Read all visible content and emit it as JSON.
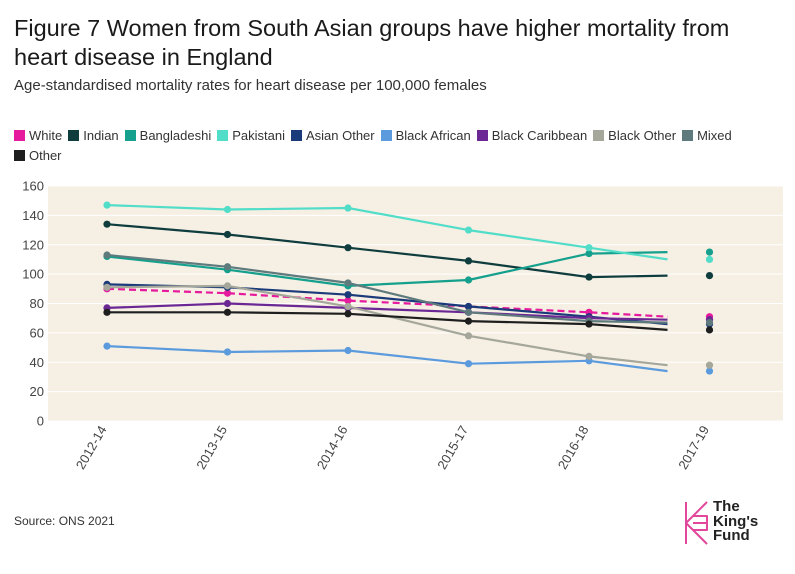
{
  "header": {
    "title": "Figure 7 Women from South Asian groups have higher mortality from heart disease in England",
    "subtitle": "Age-standardised mortality rates for heart disease per 100,000 females"
  },
  "footer": {
    "source": "Source: ONS 2021"
  },
  "logo": {
    "line1": "The",
    "line2": "King's",
    "line3": "Fund",
    "color": "#e2479b"
  },
  "chart_data": {
    "type": "line",
    "title": "",
    "xlabel": "",
    "ylabel": "",
    "ylim": [
      0,
      160
    ],
    "yticks": [
      0,
      20,
      40,
      60,
      80,
      100,
      120,
      140,
      160
    ],
    "categories": [
      "2012-14",
      "2013-15",
      "2014-16",
      "2015-17",
      "2016-18",
      "2017-19"
    ],
    "background": "#f6efe4",
    "gridlines": true,
    "legend_position": "top",
    "series": [
      {
        "name": "White",
        "color": "#e61a9c",
        "dashed": true,
        "values": [
          90,
          87,
          82,
          78,
          74,
          71
        ]
      },
      {
        "name": "Indian",
        "color": "#0f3d3e",
        "values": [
          134,
          127,
          118,
          109,
          98,
          99
        ]
      },
      {
        "name": "Bangladeshi",
        "color": "#14a08c",
        "values": [
          112,
          103,
          92,
          96,
          114,
          115
        ]
      },
      {
        "name": "Pakistani",
        "color": "#52ddc9",
        "values": [
          147,
          144,
          145,
          130,
          118,
          110
        ]
      },
      {
        "name": "Asian Other",
        "color": "#1a3a7a",
        "values": [
          93,
          91,
          86,
          78,
          71,
          66
        ]
      },
      {
        "name": "Black African",
        "color": "#5b9bdd",
        "values": [
          51,
          47,
          48,
          39,
          41,
          34
        ]
      },
      {
        "name": "Black Caribbean",
        "color": "#6b2894",
        "values": [
          77,
          80,
          77,
          74,
          70,
          69
        ]
      },
      {
        "name": "Black Other",
        "color": "#a4a79a",
        "values": [
          91,
          92,
          78,
          58,
          44,
          38
        ]
      },
      {
        "name": "Mixed",
        "color": "#5e7a7d",
        "values": [
          113,
          105,
          94,
          74,
          68,
          67
        ]
      },
      {
        "name": "Other",
        "color": "#1e1e1e",
        "values": [
          74,
          74,
          73,
          68,
          66,
          62
        ]
      }
    ]
  }
}
